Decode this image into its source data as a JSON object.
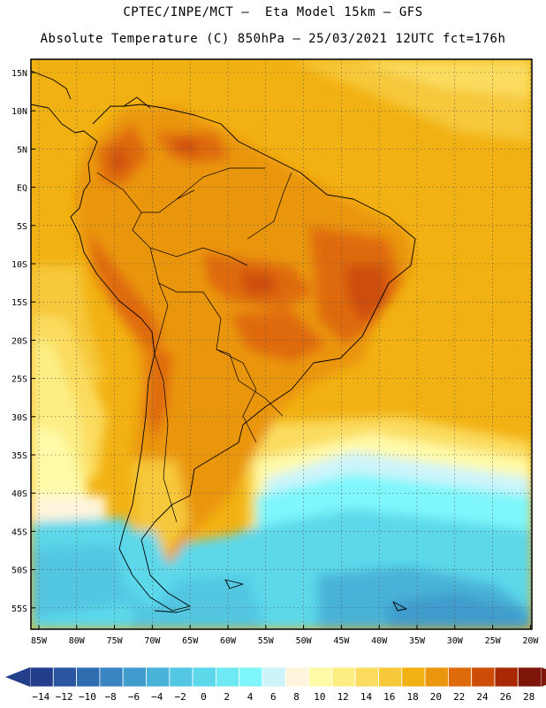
{
  "header": {
    "line1": "CPTEC/INPE/MCT –  Eta Model 15km – GFS",
    "line2": "Absolute Temperature (C) 850hPa – 25/03/2021 12UTC fct=176h"
  },
  "map": {
    "variable": "Absolute Temperature",
    "units": "C",
    "level": "850hPa",
    "lat_labels": [
      "15N",
      "10N",
      "5N",
      "EQ",
      "5S",
      "10S",
      "15S",
      "20S",
      "25S",
      "30S",
      "35S",
      "40S",
      "45S",
      "50S",
      "55S"
    ],
    "lon_labels": [
      "85W",
      "80W",
      "75W",
      "70W",
      "65W",
      "60W",
      "55W",
      "50W",
      "45W",
      "40W",
      "35W",
      "30W",
      "25W",
      "20W"
    ]
  },
  "colorbar": {
    "labels": [
      "-14",
      "-12",
      "-10",
      "-8",
      "-6",
      "-4",
      "-2",
      "0",
      "2",
      "4",
      "6",
      "8",
      "10",
      "12",
      "14",
      "16",
      "18",
      "20",
      "22",
      "24",
      "26",
      "28"
    ],
    "colors": [
      "#233f8c",
      "#2a55a0",
      "#2f6cb0",
      "#3a84c2",
      "#3f9ccc",
      "#48b2d8",
      "#52c6e2",
      "#5cd8ea",
      "#6ee8f2",
      "#7ef6fb",
      "#cdf4fb",
      "#fff5dc",
      "#fffaa8",
      "#fdee84",
      "#fbdc5e",
      "#f6c83a",
      "#f2b112",
      "#ea960e",
      "#df6a09",
      "#cd4d07",
      "#a92905",
      "#7d1608"
    ],
    "low_color": "#233f8c",
    "high_color": "#7d1608"
  }
}
